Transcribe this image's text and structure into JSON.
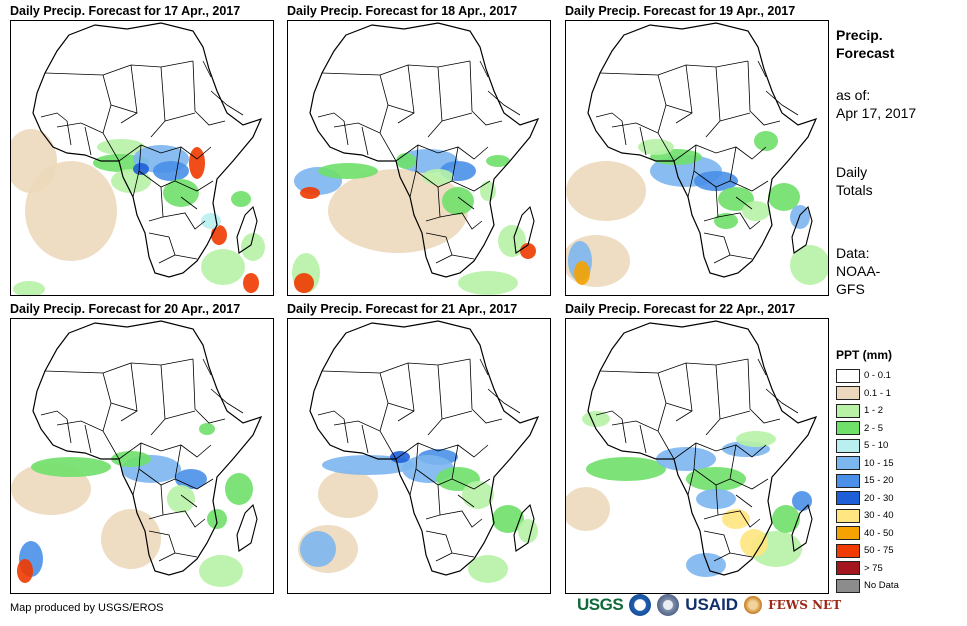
{
  "panels": [
    {
      "title": "Daily Precip. Forecast for 17 Apr., 2017"
    },
    {
      "title": "Daily Precip. Forecast for 18 Apr., 2017"
    },
    {
      "title": "Daily Precip. Forecast for 19 Apr., 2017"
    },
    {
      "title": "Daily Precip. Forecast for 20 Apr., 2017"
    },
    {
      "title": "Daily Precip. Forecast for 21 Apr., 2017"
    },
    {
      "title": "Daily Precip. Forecast for 22 Apr., 2017"
    }
  ],
  "side_info": {
    "title_line1": "Precip.",
    "title_line2": "Forecast",
    "asof_label": "as of:",
    "asof_date": "Apr 17, 2017",
    "totals_line1": "Daily",
    "totals_line2": "Totals",
    "data_line1": "Data:",
    "data_line2": "NOAA-",
    "data_line3": "GFS"
  },
  "legend": {
    "title": "PPT (mm)",
    "items": [
      {
        "label": "0 - 0.1",
        "color": "#ffffff"
      },
      {
        "label": "0.1 - 1",
        "color": "#ecd9bd"
      },
      {
        "label": "1 - 2",
        "color": "#b7f2a6"
      },
      {
        "label": "2 - 5",
        "color": "#6fe06a"
      },
      {
        "label": "5 - 10",
        "color": "#b9efef"
      },
      {
        "label": "10 - 15",
        "color": "#7cb6ef"
      },
      {
        "label": "15 - 20",
        "color": "#4a8fe8"
      },
      {
        "label": "20 - 30",
        "color": "#1e5fd8"
      },
      {
        "label": "30 - 40",
        "color": "#ffe680"
      },
      {
        "label": "40 - 50",
        "color": "#f5a300"
      },
      {
        "label": "50 - 75",
        "color": "#ef3a00"
      },
      {
        "label": "> 75",
        "color": "#a3161d"
      },
      {
        "label": "No Data",
        "color": "#8c8c8c"
      }
    ]
  },
  "credit": "Map produced by USGS/EROS",
  "logos": {
    "usgs": "USGS",
    "usaid": "USAID",
    "fews": "FEWS NET"
  }
}
